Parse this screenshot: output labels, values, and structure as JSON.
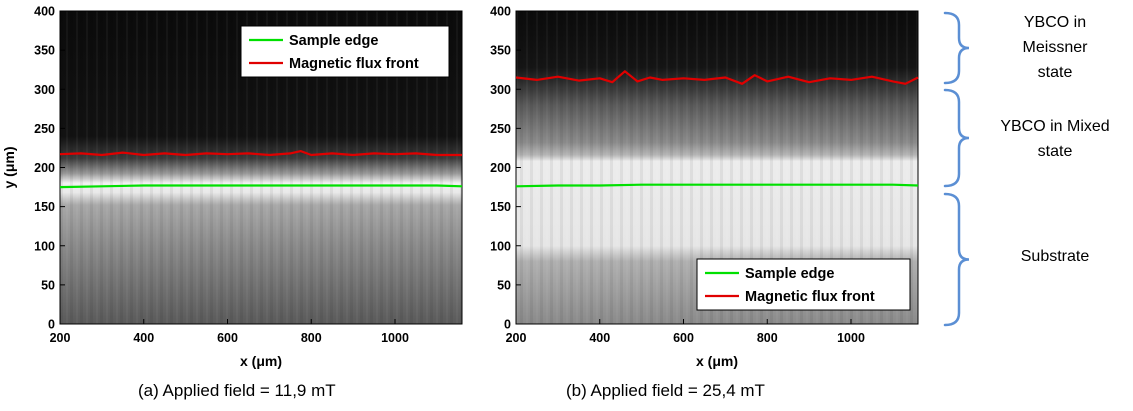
{
  "colors": {
    "sample_edge": "#00e000",
    "flux_front": "#e00000",
    "brace": "#5b8fd4"
  },
  "chart_data": [
    {
      "type": "line",
      "title": "",
      "xlabel": "x (μm)",
      "ylabel": "y (μm)",
      "xlim": [
        200,
        1160
      ],
      "ylim": [
        0,
        400
      ],
      "x_ticks": [
        200,
        400,
        600,
        800,
        1000
      ],
      "y_ticks": [
        0,
        50,
        100,
        150,
        200,
        250,
        300,
        350,
        400
      ],
      "legend_position": "top-right",
      "series": [
        {
          "name": "Sample edge",
          "color": "#00e000",
          "x": [
            200,
            300,
            400,
            500,
            600,
            700,
            800,
            900,
            1000,
            1100,
            1160
          ],
          "y": [
            175,
            176,
            177,
            177,
            177,
            177,
            177,
            177,
            177,
            177,
            176
          ]
        },
        {
          "name": "Magnetic flux front",
          "color": "#e00000",
          "x": [
            200,
            250,
            300,
            350,
            400,
            450,
            500,
            550,
            600,
            650,
            700,
            750,
            775,
            800,
            850,
            900,
            950,
            1000,
            1050,
            1100,
            1160
          ],
          "y": [
            217,
            218,
            216,
            219,
            216,
            218,
            216,
            218,
            217,
            218,
            216,
            218,
            221,
            216,
            218,
            216,
            218,
            217,
            218,
            216,
            216
          ]
        }
      ]
    },
    {
      "type": "line",
      "title": "",
      "xlabel": "x (μm)",
      "ylabel": "",
      "xlim": [
        200,
        1160
      ],
      "ylim": [
        0,
        400
      ],
      "x_ticks": [
        200,
        400,
        600,
        800,
        1000
      ],
      "y_ticks": [
        0,
        50,
        100,
        150,
        200,
        250,
        300,
        350,
        400
      ],
      "legend_position": "bottom-right",
      "series": [
        {
          "name": "Sample edge",
          "color": "#00e000",
          "x": [
            200,
            300,
            400,
            500,
            600,
            700,
            800,
            900,
            1000,
            1100,
            1160
          ],
          "y": [
            176,
            177,
            177,
            178,
            178,
            178,
            178,
            178,
            178,
            178,
            177
          ]
        },
        {
          "name": "Magnetic flux front",
          "color": "#e00000",
          "x": [
            200,
            250,
            300,
            350,
            400,
            430,
            460,
            490,
            520,
            550,
            600,
            650,
            700,
            740,
            770,
            800,
            850,
            900,
            950,
            1000,
            1050,
            1100,
            1130,
            1160
          ],
          "y": [
            315,
            312,
            316,
            311,
            314,
            309,
            323,
            310,
            315,
            312,
            314,
            312,
            315,
            307,
            318,
            310,
            316,
            309,
            314,
            312,
            316,
            310,
            307,
            315
          ]
        }
      ]
    }
  ],
  "captions": {
    "a": "(a)  Applied field = 11,9 mT",
    "b": "(b)  Applied field = 25,4 mT"
  },
  "regions": [
    {
      "label_lines": [
        "YBCO in",
        "Meissner",
        "state"
      ]
    },
    {
      "label_lines": [
        "YBCO in Mixed",
        "state"
      ]
    },
    {
      "label_lines": [
        "Substrate"
      ]
    }
  ]
}
